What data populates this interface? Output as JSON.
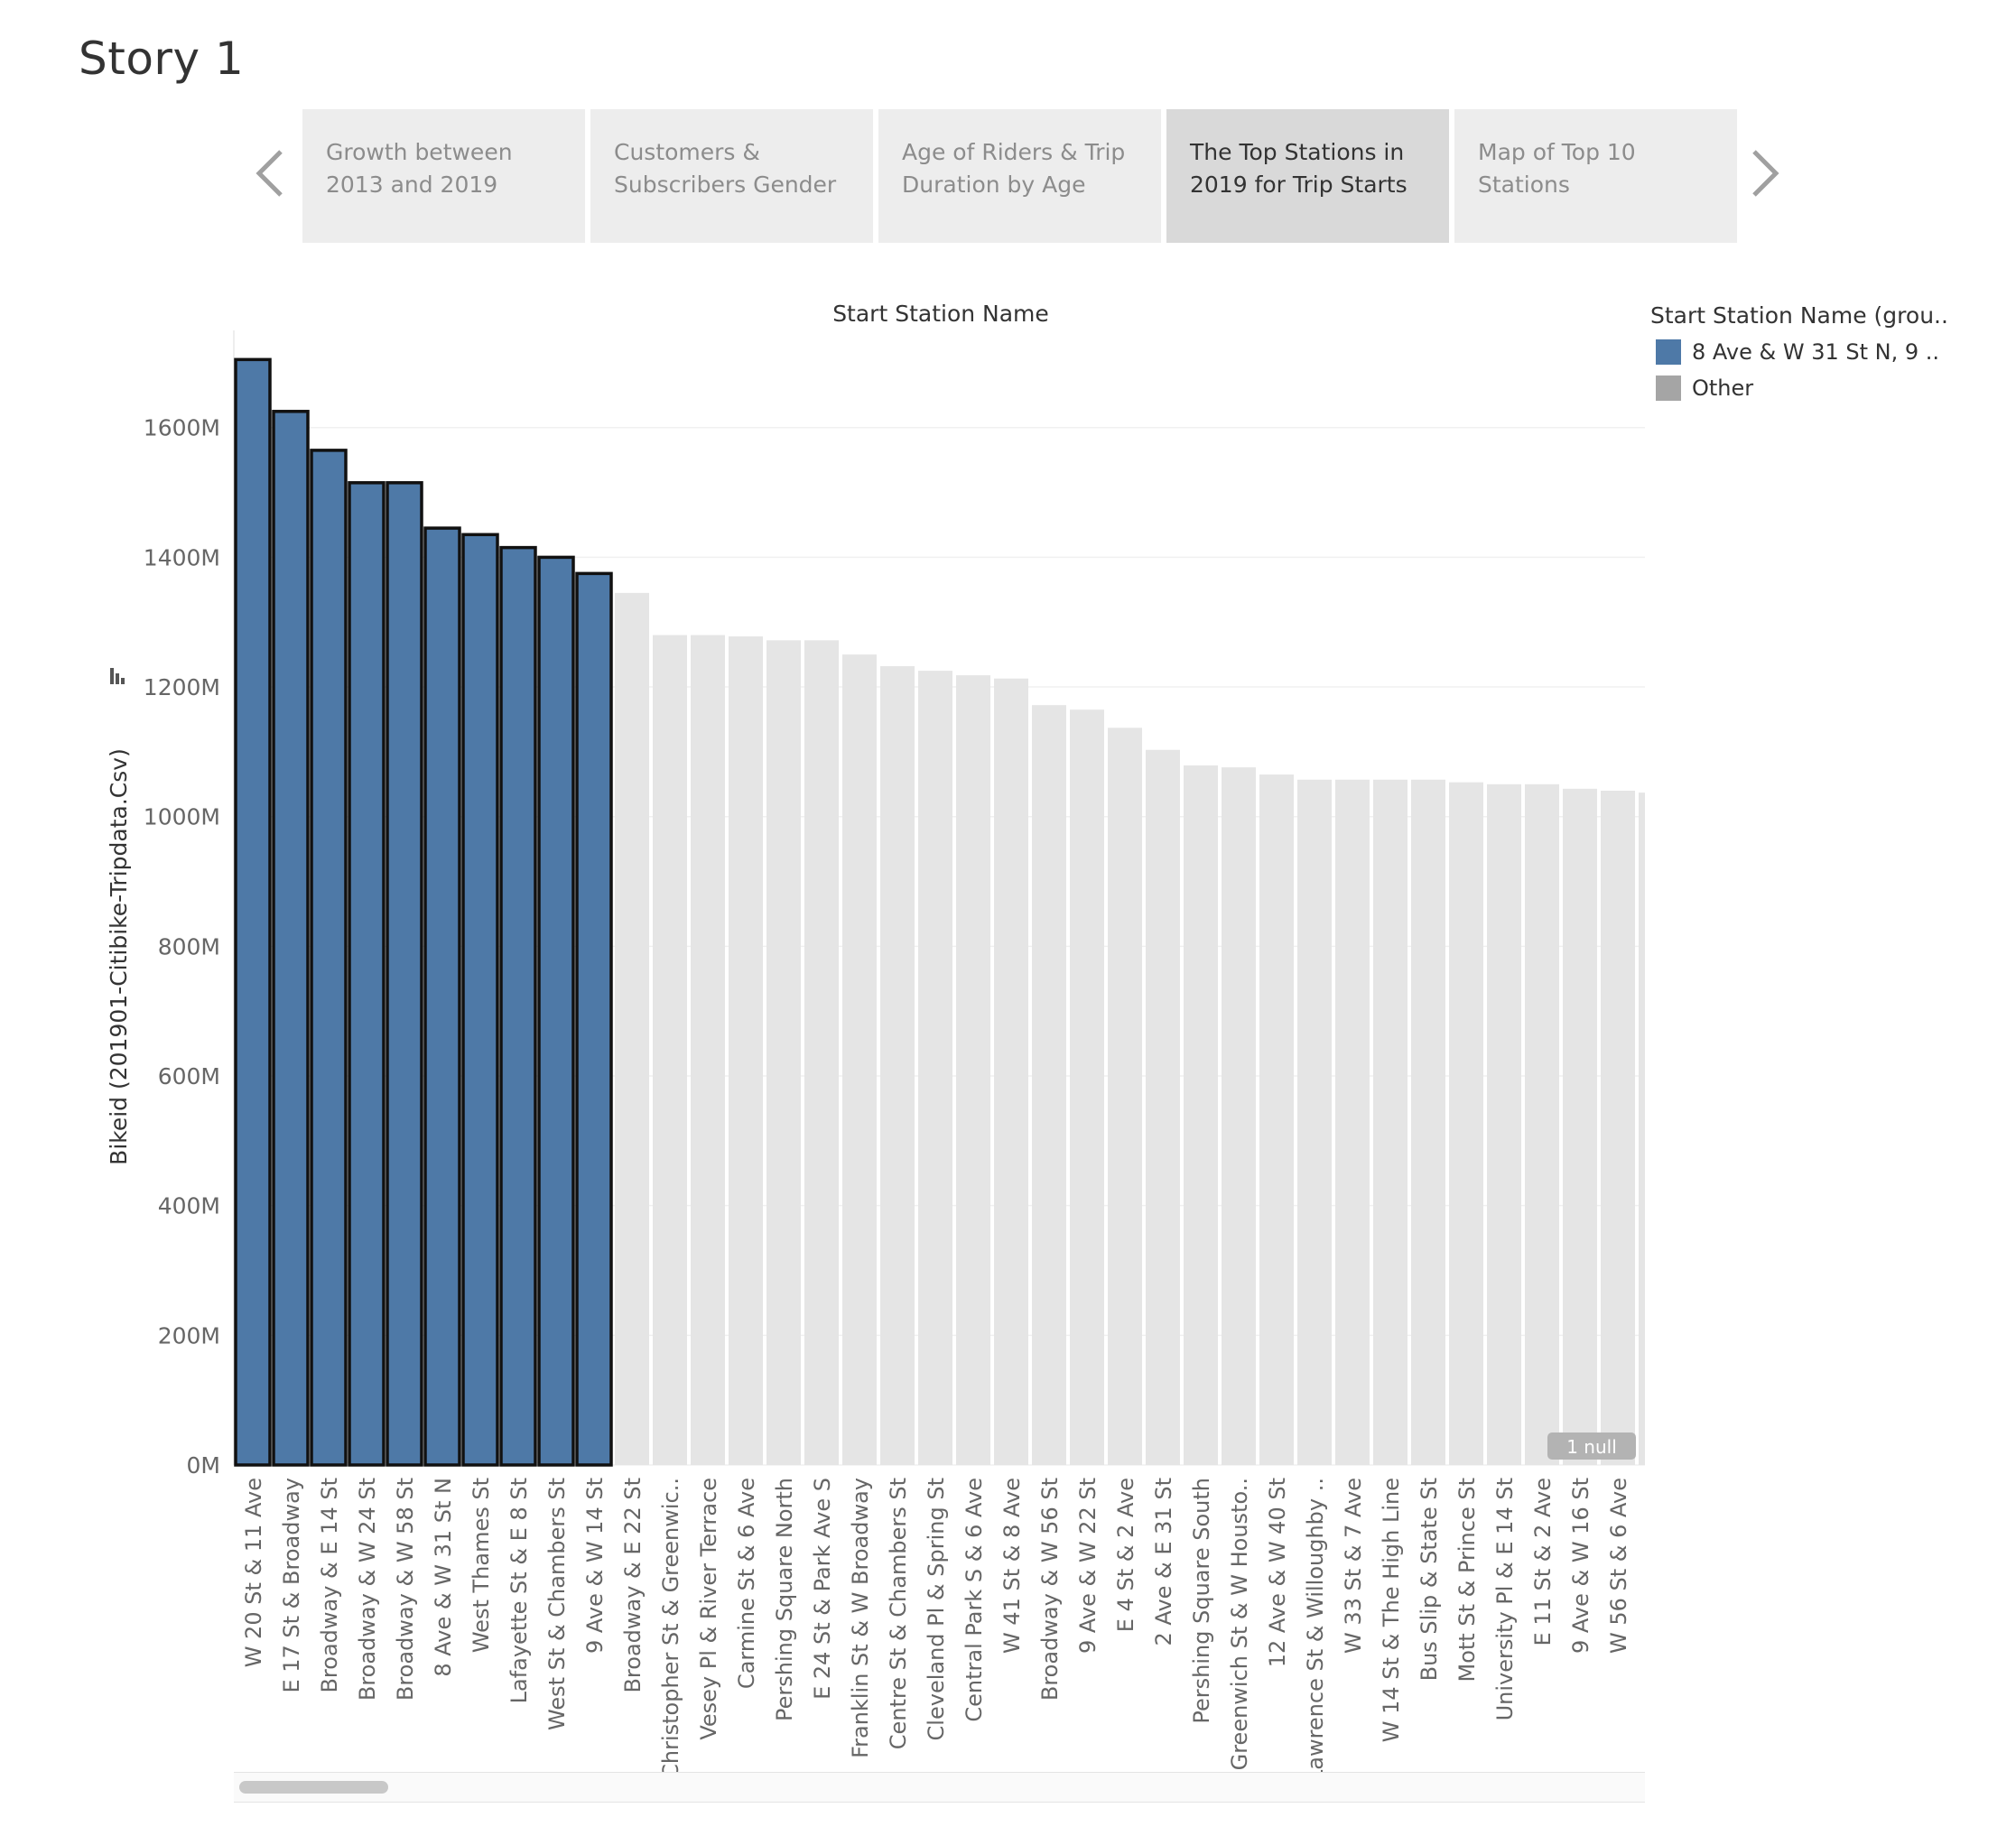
{
  "story": {
    "title": "Story 1"
  },
  "nav": {
    "prev_icon": "chevron-left-icon",
    "next_icon": "chevron-right-icon",
    "points": [
      {
        "line1": "Growth between",
        "line2": "2013 and  2019",
        "active": false
      },
      {
        "line1": "Customers &",
        "line2": "Subscribers Gender",
        "active": false
      },
      {
        "line1": "Age of Riders & Trip",
        "line2": "Duration by Age",
        "active": false
      },
      {
        "line1": "The Top Stations in",
        "line2": "2019 for Trip Starts",
        "active": true
      },
      {
        "line1": "Map of Top 10",
        "line2": "Stations",
        "active": false
      }
    ]
  },
  "legend": {
    "title": "Start Station Name (grou..",
    "items": [
      {
        "label": "8 Ave & W 31 St N, 9 ..",
        "color": "#4e79a7"
      },
      {
        "label": "Other",
        "color": "#a5a5a5"
      }
    ]
  },
  "null_badge": "1 null",
  "chart_data": {
    "type": "bar",
    "title": "Start Station Name",
    "xlabel": "",
    "ylabel": "Bikeid (201901-Citibike-Tripdata.Csv)",
    "ylim": [
      0,
      1750
    ],
    "y_unit": "M",
    "yticks": [
      "0M",
      "200M",
      "400M",
      "600M",
      "800M",
      "1000M",
      "1200M",
      "1400M",
      "1600M"
    ],
    "grid": true,
    "colors": {
      "highlight": "#4e79a7",
      "other": "#e5e5e5",
      "outline": "#111111"
    },
    "categories": [
      "W 20 St & 11 Ave",
      "E 17 St & Broadway",
      "Broadway & E 14 St",
      "Broadway & W 24 St",
      "Broadway & W 58 St",
      "8 Ave & W 31 St N",
      "West Thames St",
      "Lafayette St & E 8 St",
      "West St & Chambers St",
      "9 Ave & W 14 St",
      "Broadway & E 22 St",
      "Christopher St & Greenwic..",
      "Vesey Pl & River Terrace",
      "Carmine St & 6 Ave",
      "Pershing Square North",
      "E 24 St & Park Ave S",
      "Franklin St & W Broadway",
      "Centre St & Chambers St",
      "Cleveland Pl & Spring St",
      "Central Park S & 6 Ave",
      "W 41 St & 8 Ave",
      "Broadway & W 56 St",
      "9 Ave & W 22 St",
      "E 4 St & 2 Ave",
      "2 Ave & E 31 St",
      "Pershing Square South",
      "Greenwich St & W Housto..",
      "12 Ave & W 40 St",
      "Lawrence St & Willoughby ..",
      "W 33 St & 7 Ave",
      "W 14 St & The High Line",
      "Bus Slip & State St",
      "Mott St & Prince St",
      "University Pl & E 14 St",
      "E 11 St & 2 Ave",
      "9 Ave & W 16 St",
      "W 56 St & 6 Ave",
      ""
    ],
    "values": [
      1705,
      1625,
      1565,
      1515,
      1515,
      1445,
      1435,
      1415,
      1400,
      1375,
      1345,
      1280,
      1280,
      1278,
      1272,
      1272,
      1250,
      1232,
      1225,
      1218,
      1213,
      1172,
      1165,
      1137,
      1103,
      1079,
      1076,
      1065,
      1057,
      1057,
      1057,
      1057,
      1053,
      1050,
      1050,
      1043,
      1040,
      1037
    ],
    "highlighted_count": 10
  }
}
